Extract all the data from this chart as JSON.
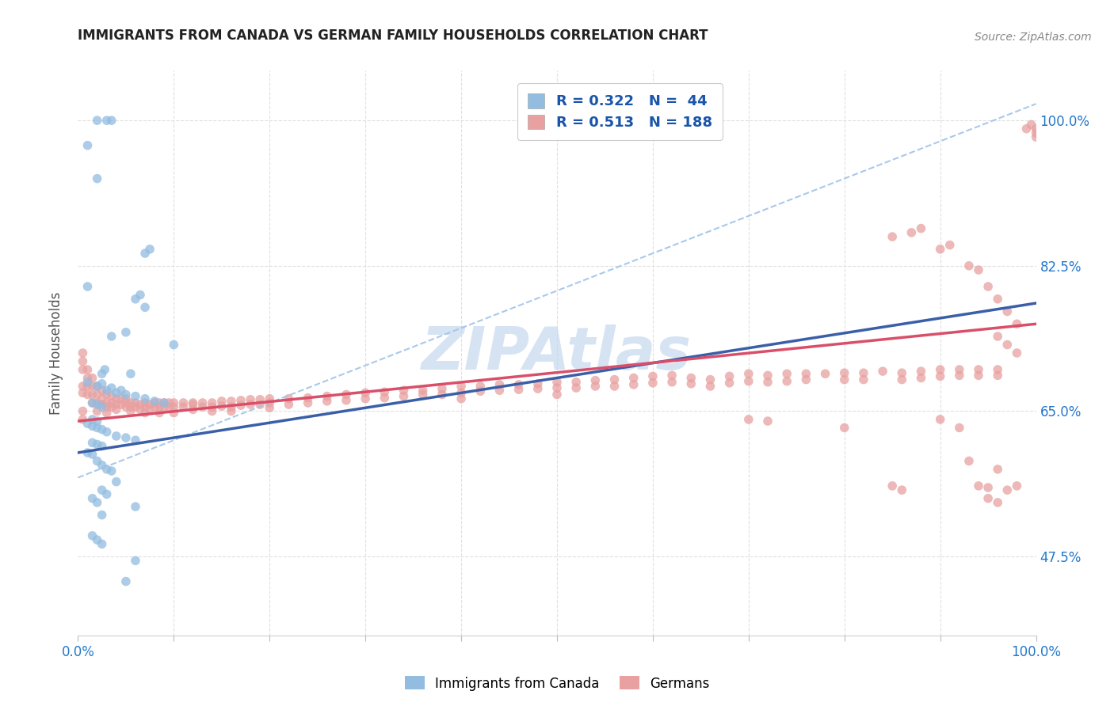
{
  "title": "IMMIGRANTS FROM CANADA VS GERMAN FAMILY HOUSEHOLDS CORRELATION CHART",
  "source": "Source: ZipAtlas.com",
  "ylabel": "Family Households",
  "ytick_labels": [
    "100.0%",
    "82.5%",
    "65.0%",
    "47.5%"
  ],
  "ytick_values": [
    1.0,
    0.825,
    0.65,
    0.475
  ],
  "blue_color": "#92bce0",
  "pink_color": "#e8a0a0",
  "blue_line_color": "#3a5fa8",
  "pink_line_color": "#d94f6a",
  "dashed_line_color": "#a0c4e8",
  "watermark_color": "#c5d8ee",
  "background_color": "#ffffff",
  "grid_color": "#e0e0e0",
  "blue_scatter": [
    [
      0.01,
      0.97
    ],
    [
      0.02,
      1.0
    ],
    [
      0.02,
      0.93
    ],
    [
      0.03,
      1.0
    ],
    [
      0.035,
      1.0
    ],
    [
      0.01,
      0.8
    ],
    [
      0.07,
      0.84
    ],
    [
      0.075,
      0.845
    ],
    [
      0.06,
      0.785
    ],
    [
      0.065,
      0.79
    ],
    [
      0.07,
      0.775
    ],
    [
      0.05,
      0.745
    ],
    [
      0.035,
      0.74
    ],
    [
      0.1,
      0.73
    ],
    [
      0.025,
      0.695
    ],
    [
      0.028,
      0.7
    ],
    [
      0.055,
      0.695
    ],
    [
      0.01,
      0.685
    ],
    [
      0.02,
      0.68
    ],
    [
      0.025,
      0.683
    ],
    [
      0.03,
      0.675
    ],
    [
      0.035,
      0.678
    ],
    [
      0.04,
      0.672
    ],
    [
      0.045,
      0.675
    ],
    [
      0.05,
      0.67
    ],
    [
      0.06,
      0.668
    ],
    [
      0.07,
      0.665
    ],
    [
      0.08,
      0.662
    ],
    [
      0.09,
      0.66
    ],
    [
      0.015,
      0.66
    ],
    [
      0.02,
      0.658
    ],
    [
      0.025,
      0.655
    ],
    [
      0.015,
      0.64
    ],
    [
      0.02,
      0.638
    ],
    [
      0.01,
      0.635
    ],
    [
      0.015,
      0.632
    ],
    [
      0.02,
      0.63
    ],
    [
      0.025,
      0.628
    ],
    [
      0.03,
      0.625
    ],
    [
      0.04,
      0.62
    ],
    [
      0.05,
      0.618
    ],
    [
      0.06,
      0.615
    ],
    [
      0.015,
      0.612
    ],
    [
      0.02,
      0.61
    ],
    [
      0.025,
      0.608
    ],
    [
      0.01,
      0.6
    ],
    [
      0.015,
      0.598
    ],
    [
      0.02,
      0.59
    ],
    [
      0.025,
      0.585
    ],
    [
      0.03,
      0.58
    ],
    [
      0.035,
      0.578
    ],
    [
      0.04,
      0.565
    ],
    [
      0.025,
      0.555
    ],
    [
      0.03,
      0.55
    ],
    [
      0.015,
      0.545
    ],
    [
      0.02,
      0.54
    ],
    [
      0.06,
      0.535
    ],
    [
      0.025,
      0.525
    ],
    [
      0.015,
      0.5
    ],
    [
      0.02,
      0.495
    ],
    [
      0.025,
      0.49
    ],
    [
      0.06,
      0.47
    ],
    [
      0.05,
      0.445
    ]
  ],
  "pink_scatter": [
    [
      0.005,
      0.72
    ],
    [
      0.005,
      0.71
    ],
    [
      0.005,
      0.7
    ],
    [
      0.01,
      0.7
    ],
    [
      0.01,
      0.69
    ],
    [
      0.01,
      0.68
    ],
    [
      0.01,
      0.67
    ],
    [
      0.015,
      0.69
    ],
    [
      0.015,
      0.68
    ],
    [
      0.015,
      0.67
    ],
    [
      0.015,
      0.66
    ],
    [
      0.02,
      0.68
    ],
    [
      0.02,
      0.67
    ],
    [
      0.02,
      0.66
    ],
    [
      0.02,
      0.65
    ],
    [
      0.025,
      0.675
    ],
    [
      0.025,
      0.665
    ],
    [
      0.025,
      0.658
    ],
    [
      0.03,
      0.67
    ],
    [
      0.03,
      0.66
    ],
    [
      0.03,
      0.655
    ],
    [
      0.03,
      0.648
    ],
    [
      0.035,
      0.668
    ],
    [
      0.035,
      0.66
    ],
    [
      0.035,
      0.655
    ],
    [
      0.04,
      0.665
    ],
    [
      0.04,
      0.658
    ],
    [
      0.04,
      0.652
    ],
    [
      0.045,
      0.665
    ],
    [
      0.045,
      0.658
    ],
    [
      0.05,
      0.665
    ],
    [
      0.05,
      0.66
    ],
    [
      0.05,
      0.655
    ],
    [
      0.055,
      0.66
    ],
    [
      0.055,
      0.655
    ],
    [
      0.055,
      0.65
    ],
    [
      0.06,
      0.66
    ],
    [
      0.06,
      0.655
    ],
    [
      0.065,
      0.658
    ],
    [
      0.065,
      0.652
    ],
    [
      0.07,
      0.66
    ],
    [
      0.07,
      0.655
    ],
    [
      0.07,
      0.648
    ],
    [
      0.075,
      0.658
    ],
    [
      0.075,
      0.652
    ],
    [
      0.08,
      0.66
    ],
    [
      0.08,
      0.655
    ],
    [
      0.085,
      0.66
    ],
    [
      0.085,
      0.655
    ],
    [
      0.085,
      0.648
    ],
    [
      0.09,
      0.66
    ],
    [
      0.09,
      0.655
    ],
    [
      0.095,
      0.66
    ],
    [
      0.095,
      0.654
    ],
    [
      0.1,
      0.66
    ],
    [
      0.1,
      0.655
    ],
    [
      0.1,
      0.648
    ],
    [
      0.11,
      0.66
    ],
    [
      0.11,
      0.655
    ],
    [
      0.12,
      0.66
    ],
    [
      0.12,
      0.658
    ],
    [
      0.12,
      0.652
    ],
    [
      0.13,
      0.66
    ],
    [
      0.13,
      0.655
    ],
    [
      0.14,
      0.66
    ],
    [
      0.14,
      0.655
    ],
    [
      0.14,
      0.65
    ],
    [
      0.15,
      0.662
    ],
    [
      0.15,
      0.656
    ],
    [
      0.16,
      0.662
    ],
    [
      0.16,
      0.655
    ],
    [
      0.16,
      0.65
    ],
    [
      0.17,
      0.663
    ],
    [
      0.17,
      0.657
    ],
    [
      0.18,
      0.664
    ],
    [
      0.18,
      0.658
    ],
    [
      0.19,
      0.664
    ],
    [
      0.19,
      0.658
    ],
    [
      0.2,
      0.665
    ],
    [
      0.2,
      0.66
    ],
    [
      0.2,
      0.654
    ],
    [
      0.22,
      0.665
    ],
    [
      0.22,
      0.658
    ],
    [
      0.24,
      0.666
    ],
    [
      0.24,
      0.66
    ],
    [
      0.26,
      0.668
    ],
    [
      0.26,
      0.662
    ],
    [
      0.28,
      0.67
    ],
    [
      0.28,
      0.663
    ],
    [
      0.3,
      0.672
    ],
    [
      0.3,
      0.665
    ],
    [
      0.32,
      0.673
    ],
    [
      0.32,
      0.666
    ],
    [
      0.34,
      0.675
    ],
    [
      0.34,
      0.668
    ],
    [
      0.36,
      0.675
    ],
    [
      0.36,
      0.67
    ],
    [
      0.38,
      0.677
    ],
    [
      0.38,
      0.67
    ],
    [
      0.4,
      0.68
    ],
    [
      0.4,
      0.672
    ],
    [
      0.4,
      0.665
    ],
    [
      0.42,
      0.68
    ],
    [
      0.42,
      0.674
    ],
    [
      0.44,
      0.682
    ],
    [
      0.44,
      0.675
    ],
    [
      0.46,
      0.682
    ],
    [
      0.46,
      0.676
    ],
    [
      0.48,
      0.683
    ],
    [
      0.48,
      0.677
    ],
    [
      0.5,
      0.685
    ],
    [
      0.5,
      0.678
    ],
    [
      0.5,
      0.67
    ],
    [
      0.52,
      0.685
    ],
    [
      0.52,
      0.678
    ],
    [
      0.54,
      0.687
    ],
    [
      0.54,
      0.68
    ],
    [
      0.56,
      0.688
    ],
    [
      0.56,
      0.68
    ],
    [
      0.58,
      0.69
    ],
    [
      0.58,
      0.682
    ],
    [
      0.6,
      0.692
    ],
    [
      0.6,
      0.684
    ],
    [
      0.62,
      0.693
    ],
    [
      0.62,
      0.685
    ],
    [
      0.64,
      0.69
    ],
    [
      0.64,
      0.683
    ],
    [
      0.66,
      0.688
    ],
    [
      0.66,
      0.68
    ],
    [
      0.68,
      0.692
    ],
    [
      0.68,
      0.684
    ],
    [
      0.7,
      0.695
    ],
    [
      0.7,
      0.686
    ],
    [
      0.72,
      0.693
    ],
    [
      0.72,
      0.685
    ],
    [
      0.74,
      0.695
    ],
    [
      0.74,
      0.686
    ],
    [
      0.76,
      0.695
    ],
    [
      0.76,
      0.688
    ],
    [
      0.78,
      0.695
    ],
    [
      0.8,
      0.696
    ],
    [
      0.8,
      0.688
    ],
    [
      0.82,
      0.696
    ],
    [
      0.82,
      0.688
    ],
    [
      0.84,
      0.698
    ],
    [
      0.86,
      0.696
    ],
    [
      0.86,
      0.688
    ],
    [
      0.88,
      0.698
    ],
    [
      0.88,
      0.69
    ],
    [
      0.9,
      0.7
    ],
    [
      0.9,
      0.692
    ],
    [
      0.92,
      0.7
    ],
    [
      0.92,
      0.693
    ],
    [
      0.94,
      0.7
    ],
    [
      0.94,
      0.693
    ],
    [
      0.96,
      0.7
    ],
    [
      0.96,
      0.693
    ],
    [
      0.005,
      0.65
    ],
    [
      0.005,
      0.64
    ],
    [
      0.7,
      0.64
    ],
    [
      0.72,
      0.638
    ],
    [
      0.8,
      0.63
    ],
    [
      0.9,
      0.64
    ],
    [
      0.92,
      0.63
    ],
    [
      0.85,
      0.86
    ],
    [
      0.87,
      0.865
    ],
    [
      0.88,
      0.87
    ],
    [
      0.9,
      0.845
    ],
    [
      0.91,
      0.85
    ],
    [
      0.93,
      0.825
    ],
    [
      0.94,
      0.82
    ],
    [
      0.95,
      0.8
    ],
    [
      0.96,
      0.785
    ],
    [
      0.97,
      0.77
    ],
    [
      0.98,
      0.755
    ],
    [
      0.96,
      0.74
    ],
    [
      0.97,
      0.73
    ],
    [
      0.98,
      0.72
    ],
    [
      0.95,
      0.545
    ],
    [
      0.96,
      0.54
    ],
    [
      0.97,
      0.555
    ],
    [
      0.98,
      0.56
    ],
    [
      0.85,
      0.56
    ],
    [
      0.86,
      0.555
    ],
    [
      0.93,
      0.59
    ],
    [
      0.94,
      0.56
    ],
    [
      0.95,
      0.558
    ],
    [
      0.96,
      0.58
    ],
    [
      1.0,
      0.99
    ],
    [
      1.0,
      0.985
    ],
    [
      1.0,
      0.98
    ],
    [
      0.99,
      0.99
    ],
    [
      0.995,
      0.995
    ],
    [
      0.005,
      0.68
    ],
    [
      0.005,
      0.672
    ]
  ],
  "blue_trendline_x": [
    0.0,
    1.0
  ],
  "blue_trendline_y": [
    0.6,
    0.78
  ],
  "pink_trendline_x": [
    0.0,
    1.0
  ],
  "pink_trendline_y": [
    0.638,
    0.755
  ],
  "dashed_trendline_x": [
    0.0,
    1.0
  ],
  "dashed_trendline_y": [
    0.57,
    1.02
  ],
  "xmin": 0.0,
  "xmax": 1.0,
  "ymin": 0.38,
  "ymax": 1.06
}
